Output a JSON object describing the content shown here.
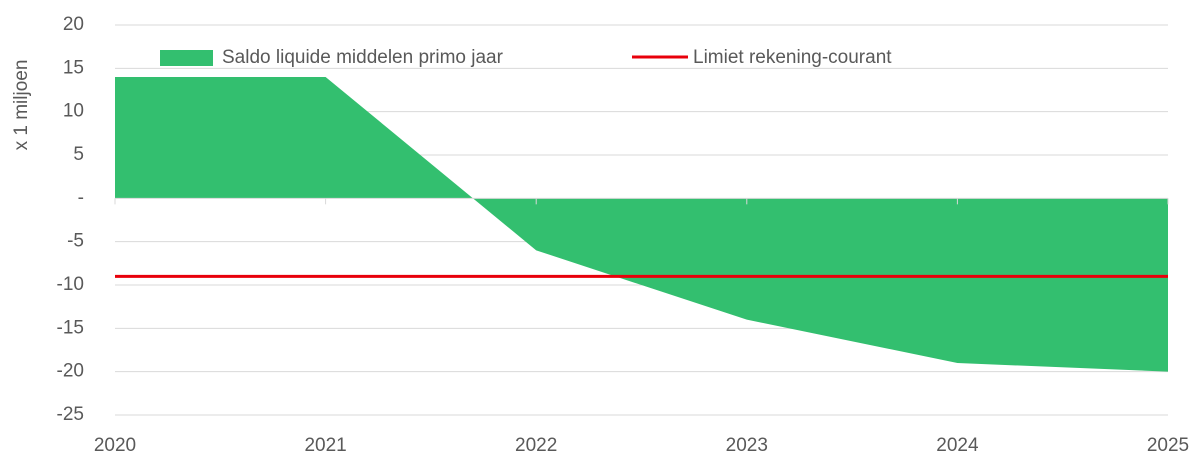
{
  "chart_data": {
    "type": "area",
    "y_label": "x 1 miljoen",
    "categories": [
      "2020",
      "2021",
      "2022",
      "2023",
      "2024",
      "2025"
    ],
    "series": [
      {
        "name": "Saldo liquide middelen primo jaar",
        "color": "#33bf6f",
        "type": "area",
        "values": [
          14,
          14,
          -6,
          -14,
          -19,
          -20
        ]
      },
      {
        "name": "Limiet rekening-courant",
        "color": "#e8000b",
        "type": "line",
        "values": [
          -9,
          -9,
          -9,
          -9,
          -9,
          -9
        ]
      }
    ],
    "ylim": [
      -25,
      20
    ],
    "yticks": [
      -25,
      -20,
      -15,
      -10,
      -5,
      {
        "value": 0,
        "label": "-"
      },
      5,
      10,
      15,
      20
    ],
    "grid": true,
    "legend": "top"
  }
}
